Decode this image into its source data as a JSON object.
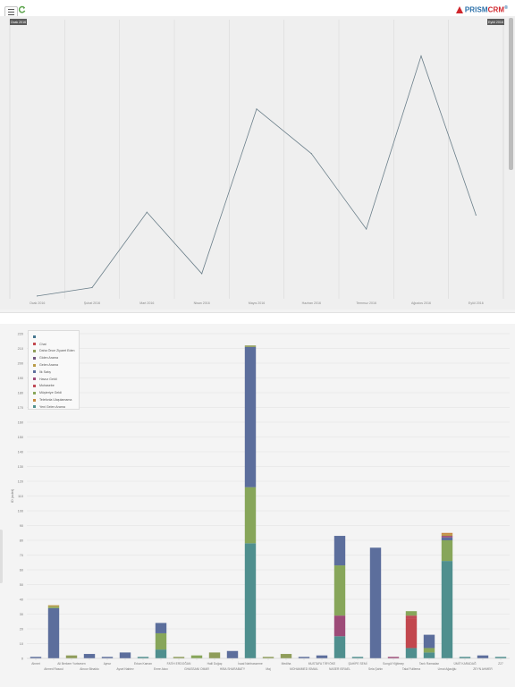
{
  "topbar": {
    "menu_icon": "hamburger-icon",
    "refresh_icon": "refresh-icon",
    "brand": "PRISM",
    "brand_suffix": "CRM",
    "brand_mark": "®"
  },
  "colors": {
    "brand_blue": "#2a6fa8",
    "brand_red": "#d0262c",
    "line_series": "#6b7f8a",
    "panel_bg": "#efefef"
  },
  "line_chart": {
    "range_start_label": "Ocak 2016",
    "range_end_label": "Eylül 2016",
    "chart_data": {
      "type": "line",
      "categories": [
        "Ocak 2016",
        "Şubat 2016",
        "Mart 2016",
        "Nisan 2016",
        "Mayıs 2016",
        "Haziran 2016",
        "Temmuz 2016",
        "Ağustos 2016",
        "Eylül 2016"
      ],
      "series": [
        {
          "values": [
            1,
            4,
            31,
            9,
            68,
            52,
            25,
            87,
            30
          ]
        }
      ],
      "ylim": [
        0,
        100
      ],
      "grid": "vertical"
    }
  },
  "bar_chart": {
    "chart_data": {
      "type": "bar",
      "stacked": true,
      "ylabel": "ID (adet)",
      "ylim": [
        0,
        220
      ],
      "yticks": [
        0,
        10,
        20,
        30,
        40,
        50,
        60,
        70,
        80,
        90,
        100,
        110,
        120,
        130,
        140,
        150,
        160,
        170,
        180,
        190,
        200,
        210,
        220
      ],
      "legend_position": "top-left",
      "legend": [
        {
          "name": "",
          "color": "#44758e"
        },
        {
          "name": "Chat",
          "color": "#c2474e"
        },
        {
          "name": "Daha Önce Ziyaret Eden",
          "color": "#8f9d5a"
        },
        {
          "name": "Giden Arama",
          "color": "#70557f"
        },
        {
          "name": "Gelen Arama",
          "color": "#b99b48"
        },
        {
          "name": "İlk Satış",
          "color": "#5c6e9c"
        },
        {
          "name": "Havuz Geldi",
          "color": "#9d4b78"
        },
        {
          "name": "Muhasebe",
          "color": "#bf4a56"
        },
        {
          "name": "Müşteriye Geldi",
          "color": "#87a65a"
        },
        {
          "name": "Telefonla Ulaşılamama",
          "color": "#c7873f"
        },
        {
          "name": "Yeni Gelen Arama",
          "color": "#4f8f8e"
        }
      ],
      "categories": [
        "Ahmet",
        "Ahmed Rasoul",
        "Ali Berkem Yurtseven",
        "Alnoor Binaldo",
        "Aynur",
        "Aysel Nabiev",
        "Erkan Kaman",
        "Emre Akıcı",
        "FATİH ERDOĞAN",
        "GHASSANI OMAR",
        "Halil Doğaç",
        "HİBA SHARABATY",
        "İsaal Nahhasseme",
        "Maj",
        "Mediha",
        "MOHAMMED ISMAIL",
        "MUSTAFA TİRYÖKE",
        "NASER ISRAEL",
        "ŞAHİPE SEMİ",
        "Sela Şahin",
        "Songül Yiğitmey",
        "Talal Fulllema",
        "Tarık Ramadan",
        "Umut Ağaoğlu",
        "ÜMİT KARADAĞ",
        "ZEYN AHMER",
        "Z27"
      ],
      "stacks": [
        [
          {
            "series": "İlk Satış",
            "value": 1
          }
        ],
        [
          {
            "series": "İlk Satış",
            "value": 34
          },
          {
            "series": "Müşteriye Geldi",
            "value": 1
          },
          {
            "series": "Gelen Arama",
            "value": 1
          }
        ],
        [
          {
            "series": "Daha Önce Ziyaret Eden",
            "value": 2
          }
        ],
        [
          {
            "series": "İlk Satış",
            "value": 3
          }
        ],
        [
          {
            "series": "İlk Satış",
            "value": 1
          }
        ],
        [
          {
            "series": "İlk Satış",
            "value": 4
          }
        ],
        [
          {
            "series": "Yeni Gelen Arama",
            "value": 1
          }
        ],
        [
          {
            "series": "Yeni Gelen Arama",
            "value": 6
          },
          {
            "series": "Müşteriye Geldi",
            "value": 11
          },
          {
            "series": "İlk Satış",
            "value": 7
          }
        ],
        [
          {
            "series": "Daha Önce Ziyaret Eden",
            "value": 1
          }
        ],
        [
          {
            "series": "Müşteriye Geldi",
            "value": 2
          }
        ],
        [
          {
            "series": "Daha Önce Ziyaret Eden",
            "value": 4
          }
        ],
        [
          {
            "series": "İlk Satış",
            "value": 5
          }
        ],
        [
          {
            "series": "Yeni Gelen Arama",
            "value": 78
          },
          {
            "series": "Müşteriye Geldi",
            "value": 38
          },
          {
            "series": "İlk Satış",
            "value": 95
          },
          {
            "series": "Daha Önce Ziyaret Eden",
            "value": 1
          }
        ],
        [
          {
            "series": "Daha Önce Ziyaret Eden",
            "value": 1
          }
        ],
        [
          {
            "series": "Daha Önce Ziyaret Eden",
            "value": 3
          }
        ],
        [
          {
            "series": "İlk Satış",
            "value": 1
          }
        ],
        [
          {
            "series": "İlk Satış",
            "value": 2
          }
        ],
        [
          {
            "series": "Yeni Gelen Arama",
            "value": 15
          },
          {
            "series": "Havuz Geldi",
            "value": 14
          },
          {
            "series": "Müşteriye Geldi",
            "value": 34
          },
          {
            "series": "İlk Satış",
            "value": 20
          }
        ],
        [
          {
            "series": "Yeni Gelen Arama",
            "value": 1
          }
        ],
        [
          {
            "series": "İlk Satış",
            "value": 75
          }
        ],
        [
          {
            "series": "Havuz Geldi",
            "value": 1
          }
        ],
        [
          {
            "series": "Yeni Gelen Arama",
            "value": 7
          },
          {
            "series": "Chat",
            "value": 20
          },
          {
            "series": "Muhasebe",
            "value": 2
          },
          {
            "series": "Müşteriye Geldi",
            "value": 3
          }
        ],
        [
          {
            "series": "Yeni Gelen Arama",
            "value": 4
          },
          {
            "series": "Müşteriye Geldi",
            "value": 3
          },
          {
            "series": "İlk Satış",
            "value": 9
          }
        ],
        [
          {
            "series": "Yeni Gelen Arama",
            "value": 66
          },
          {
            "series": "Müşteriye Geldi",
            "value": 14
          },
          {
            "series": "İlk Satış",
            "value": 2
          },
          {
            "series": "Havuz Geldi",
            "value": 1
          },
          {
            "series": "Gelen Arama",
            "value": 1
          },
          {
            "series": "Telefonla Ulaşılamama",
            "value": 1
          }
        ],
        [
          {
            "series": "Yeni Gelen Arama",
            "value": 1
          }
        ],
        [
          {
            "series": "İlk Satış",
            "value": 2
          }
        ],
        [
          {
            "series": "Yeni Gelen Arama",
            "value": 1
          }
        ]
      ]
    }
  }
}
